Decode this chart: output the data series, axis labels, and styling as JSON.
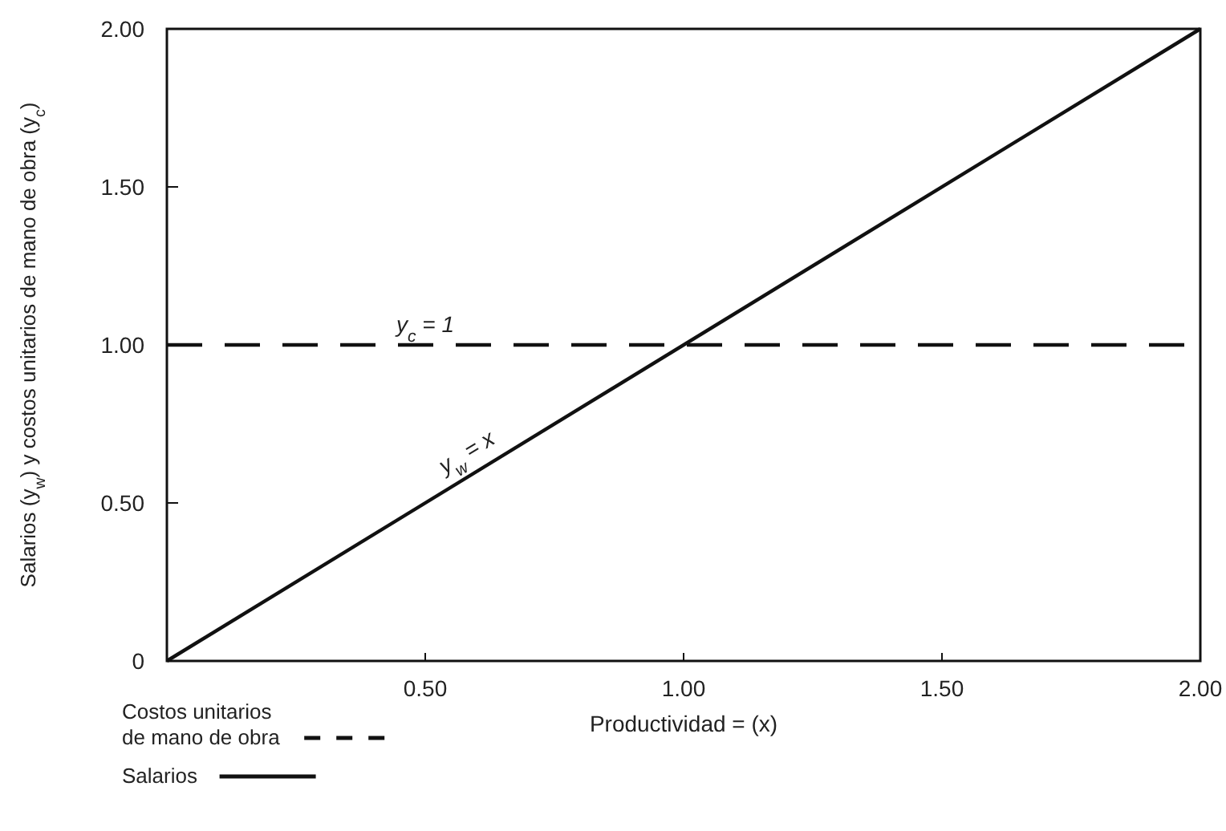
{
  "chart_data": {
    "type": "line",
    "xlabel": "Productividad = (x)",
    "ylabel": "Salarios (y$_{w}$) y costos unitarios de mano de obra (y$_{c}$)",
    "xlim": [
      0,
      2
    ],
    "ylim": [
      0,
      2
    ],
    "x": [
      0,
      2
    ],
    "xticks": [
      {
        "value": 0.5,
        "label": "0.50"
      },
      {
        "value": 1,
        "label": "1.00"
      },
      {
        "value": 1.5,
        "label": "1.50"
      },
      {
        "value": 2,
        "label": "2.00"
      }
    ],
    "yticks": [
      0,
      {
        "value": 0.5,
        "label": "0.50"
      },
      {
        "value": 1,
        "label": "1.00"
      },
      {
        "value": 1.5,
        "label": "1.50"
      },
      {
        "value": 2,
        "label": "2.00"
      }
    ],
    "series": [
      {
        "name": "Costos unitarios de mano de obra",
        "color": "#111111",
        "values": [
          1,
          1
        ],
        "line_style": "dashed"
      },
      {
        "name": "Salarios",
        "color": "#111111",
        "values": [
          0,
          2
        ],
        "line_style": "solid"
      }
    ],
    "annotations": [
      {
        "text": "y$_{c}$ = 1",
        "x": 0.5,
        "y": 1
      },
      {
        "text": "y$_{w}$ = x",
        "x": 0.6,
        "y": 0.6
      }
    ],
    "legend": "bottom",
    "grid": false,
    "marker": "none"
  }
}
